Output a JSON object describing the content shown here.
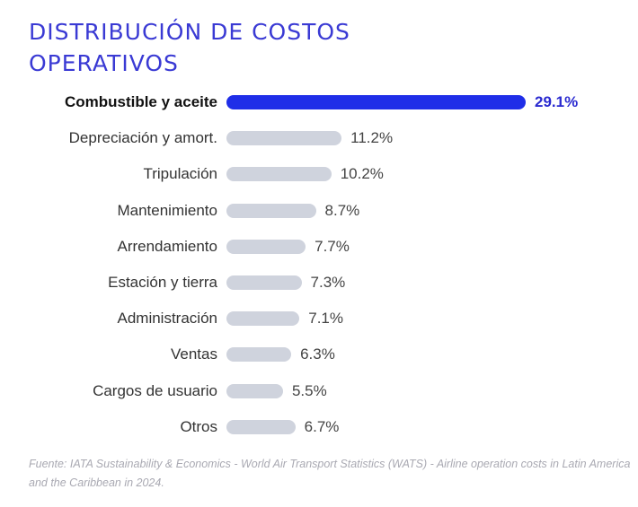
{
  "title": "DISTRIBUCIÓN DE COSTOS OPERATIVOS",
  "chart_data": {
    "type": "bar",
    "orientation": "horizontal",
    "categories": [
      "Combustible y aceite",
      "Depreciación y amort.",
      "Tripulación",
      "Mantenimiento",
      "Arrendamiento",
      "Estación y tierra",
      "Administración",
      "Ventas",
      "Cargos de usuario",
      "Otros"
    ],
    "values": [
      29.1,
      11.2,
      10.2,
      8.7,
      7.7,
      7.3,
      7.1,
      6.3,
      5.5,
      6.7
    ],
    "value_labels": [
      "29.1%",
      "11.2%",
      "10.2%",
      "8.7%",
      "7.7%",
      "7.3%",
      "7.1%",
      "6.3%",
      "5.5%",
      "6.7%"
    ],
    "highlighted": "Combustible y aceite",
    "colors": {
      "highlight": "#1f2ee8",
      "default": "#cfd3dd",
      "title": "#3a3ad4"
    },
    "grid": false
  },
  "source": "Fuente: IATA Sustainability & Economics - World Air Transport Statistics (WATS) - Airline operation costs in Latin America and the Caribbean in 2024."
}
